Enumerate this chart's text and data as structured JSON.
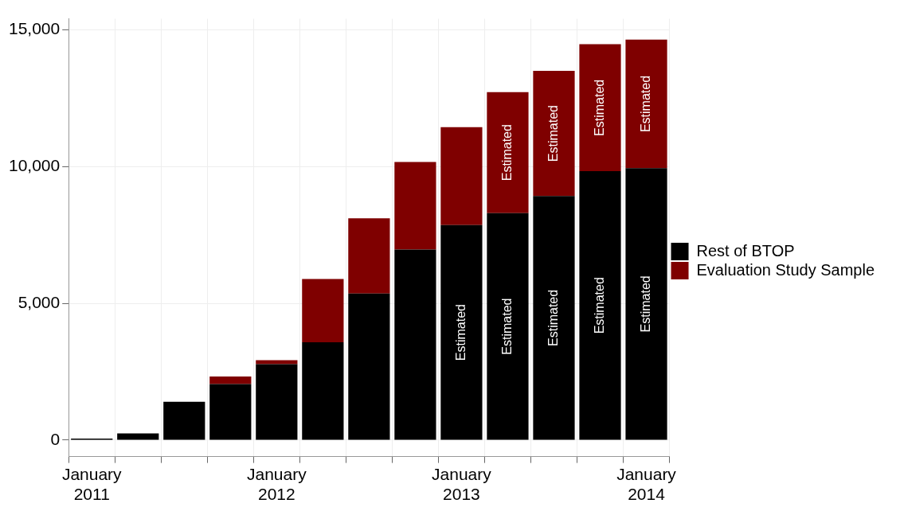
{
  "chart_data": {
    "type": "bar",
    "stacked": true,
    "categories": [
      "January 2011",
      null,
      null,
      null,
      "January 2012",
      null,
      null,
      null,
      "January 2013",
      null,
      null,
      null,
      "January 2014"
    ],
    "series": [
      {
        "name": "Rest of BTOP",
        "color": "#000000",
        "values": [
          60,
          250,
          1400,
          2050,
          2780,
          3580,
          5360,
          6970,
          7860,
          8300,
          8920,
          9830,
          9940
        ],
        "value_labels": [
          null,
          null,
          null,
          null,
          null,
          null,
          null,
          null,
          "Estimated",
          "Estimated",
          "Estimated",
          "Estimated",
          "Estimated"
        ]
      },
      {
        "name": "Evaluation Study Sample",
        "color": "#7f0000",
        "values": [
          0,
          0,
          0,
          280,
          140,
          2310,
          2750,
          3200,
          3580,
          4420,
          4580,
          4640,
          4700
        ],
        "value_labels": [
          null,
          null,
          null,
          null,
          null,
          null,
          null,
          null,
          null,
          "Estimated",
          "Estimated",
          "Estimated",
          "Estimated"
        ]
      }
    ],
    "ylim": [
      -600,
      15400
    ],
    "yticks": [
      {
        "value": 0,
        "label": "0"
      },
      {
        "value": 5000,
        "label": "5,000"
      },
      {
        "value": 10000,
        "label": "10,000"
      },
      {
        "value": 15000,
        "label": "15,000"
      }
    ],
    "grid": true,
    "legend": "right"
  }
}
